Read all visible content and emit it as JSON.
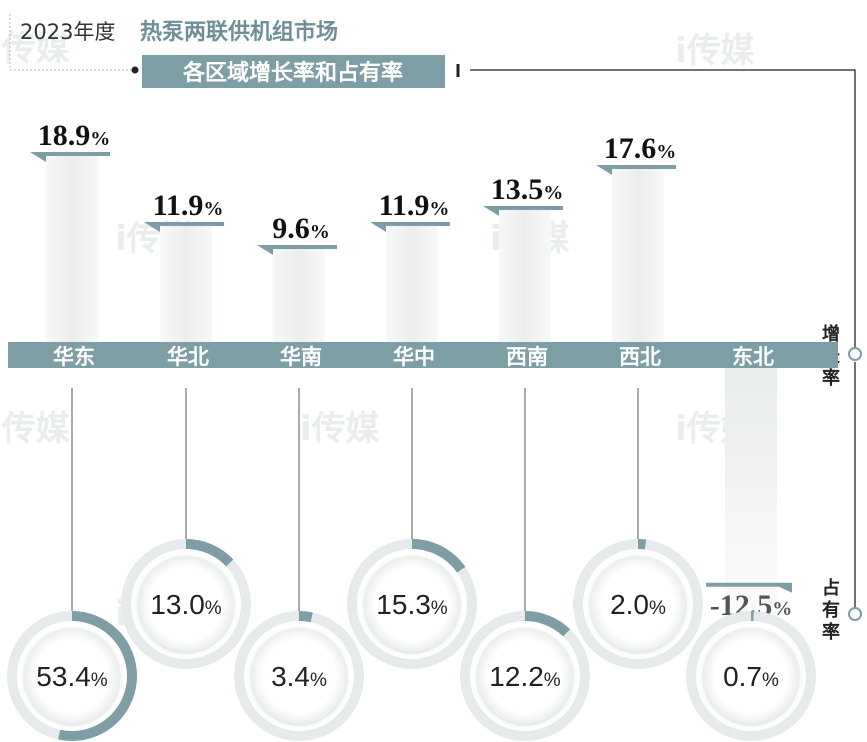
{
  "header": {
    "year": "2023年度",
    "title": "热泵两联供机组市场",
    "subtitle": "各区域增长率和占有率"
  },
  "watermark": "i传媒",
  "axis_labels": {
    "growth": "增长率",
    "share": "占有率"
  },
  "chart_data": {
    "type": "bar",
    "title": "2023年度 热泵两联供机组市场 各区域增长率和占有率",
    "categories": [
      "华东",
      "华北",
      "华南",
      "华中",
      "西南",
      "西北",
      "东北"
    ],
    "series": [
      {
        "name": "增长率",
        "unit": "%",
        "values": [
          18.9,
          11.9,
          9.6,
          11.9,
          13.5,
          17.6,
          -12.5
        ]
      },
      {
        "name": "占有率",
        "unit": "%",
        "values": [
          53.4,
          13.0,
          3.4,
          15.3,
          12.2,
          2.0,
          0.7
        ]
      }
    ],
    "growth_labels": [
      "18.9",
      "11.9",
      "9.6",
      "11.9",
      "13.5",
      "17.6",
      "-12.5"
    ],
    "share_labels": [
      "53.4",
      "13.0",
      "3.4",
      "15.3",
      "12.2",
      "2.0",
      "0.7"
    ],
    "percent_sign": "%",
    "colors": {
      "accent": "#7d9ea5",
      "ring": "#e7eaea",
      "bar_bg": "#f2f3f3"
    }
  }
}
